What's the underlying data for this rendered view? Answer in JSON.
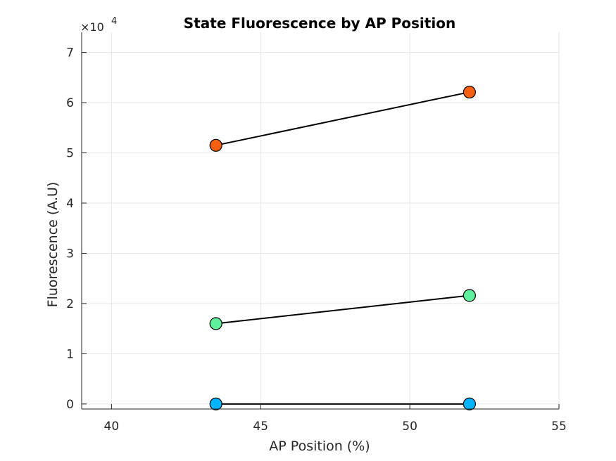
{
  "chart_data": {
    "type": "line",
    "title": "State Fluorescence by AP Position",
    "xlabel": "AP Position (%)",
    "ylabel": "Fluorescence (A.U)",
    "xlim": [
      39,
      55
    ],
    "ylim": [
      -0.1,
      7.4
    ],
    "y_multiplier_label": "×10⁴",
    "x_exponent": "4",
    "xticks": [
      40,
      45,
      50,
      55
    ],
    "yticks": [
      0,
      1,
      2,
      3,
      4,
      5,
      6,
      7
    ],
    "grid": true,
    "series": [
      {
        "x": [
          43.5,
          52.0
        ],
        "values": [
          0.0,
          0.0
        ],
        "marker_color": "#00b4ff",
        "line_color": "#000000"
      },
      {
        "x": [
          43.5,
          52.0
        ],
        "values": [
          1.6,
          2.16
        ],
        "marker_color": "#5ef09a",
        "line_color": "#000000"
      },
      {
        "x": [
          43.5,
          52.0
        ],
        "values": [
          5.15,
          6.21
        ],
        "marker_color": "#f55f12",
        "line_color": "#000000"
      }
    ]
  }
}
